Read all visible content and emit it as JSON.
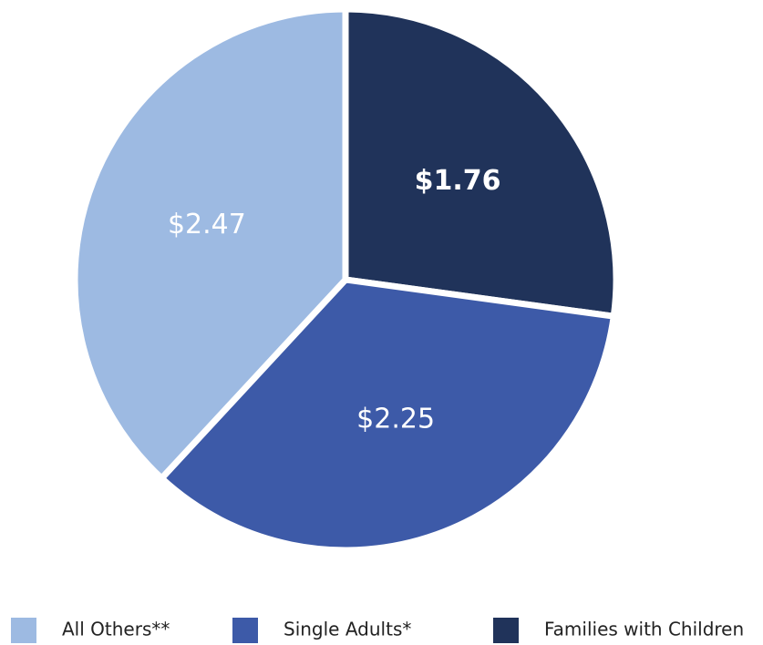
{
  "chart_data": {
    "type": "pie",
    "categories": [
      "All Others**",
      "Single Adults*",
      "Families with Children"
    ],
    "values": [
      2.47,
      2.25,
      1.76
    ],
    "value_labels": [
      "$2.47",
      "$2.25",
      "$1.76"
    ],
    "colors": [
      "#9dbae2",
      "#3d5aa8",
      "#20335a"
    ]
  }
}
